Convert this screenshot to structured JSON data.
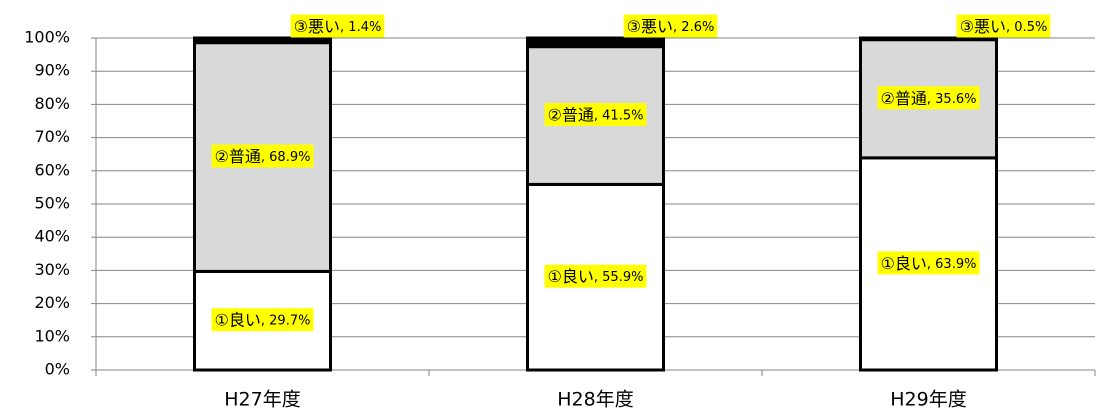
{
  "chart_data": {
    "type": "stacked_bar",
    "categories": [
      "H27年度",
      "H28年度",
      "H29年度"
    ],
    "series": [
      {
        "name": "①良い",
        "color": "#ffffff",
        "values": [
          29.7,
          55.9,
          63.9
        ],
        "value_labels": [
          ", 29.7%",
          ", 55.9%",
          ", 63.9%"
        ]
      },
      {
        "name": "②普通",
        "color": "#d9d9d9",
        "values": [
          68.9,
          41.5,
          35.6
        ],
        "value_labels": [
          ", 68.9%",
          ", 41.5%",
          ", 35.6%"
        ]
      },
      {
        "name": "③悪い",
        "color": "#000000",
        "values": [
          1.4,
          2.6,
          0.5
        ],
        "value_labels": [
          ", 1.4%",
          ", 2.6%",
          ", 0.5%"
        ]
      }
    ],
    "label_color": "#ffff00",
    "ylim": [
      0,
      100
    ],
    "yticks": [
      {
        "value": 0,
        "label": "0%"
      },
      {
        "value": 10,
        "label": "10%"
      },
      {
        "value": 20,
        "label": "20%"
      },
      {
        "value": 30,
        "label": "30%"
      },
      {
        "value": 40,
        "label": "40%"
      },
      {
        "value": 50,
        "label": "50%"
      },
      {
        "value": 60,
        "label": "60%"
      },
      {
        "value": 70,
        "label": "70%"
      },
      {
        "value": 80,
        "label": "80%"
      },
      {
        "value": 90,
        "label": "90%"
      },
      {
        "value": 100,
        "label": "100%"
      }
    ],
    "grid": true
  }
}
